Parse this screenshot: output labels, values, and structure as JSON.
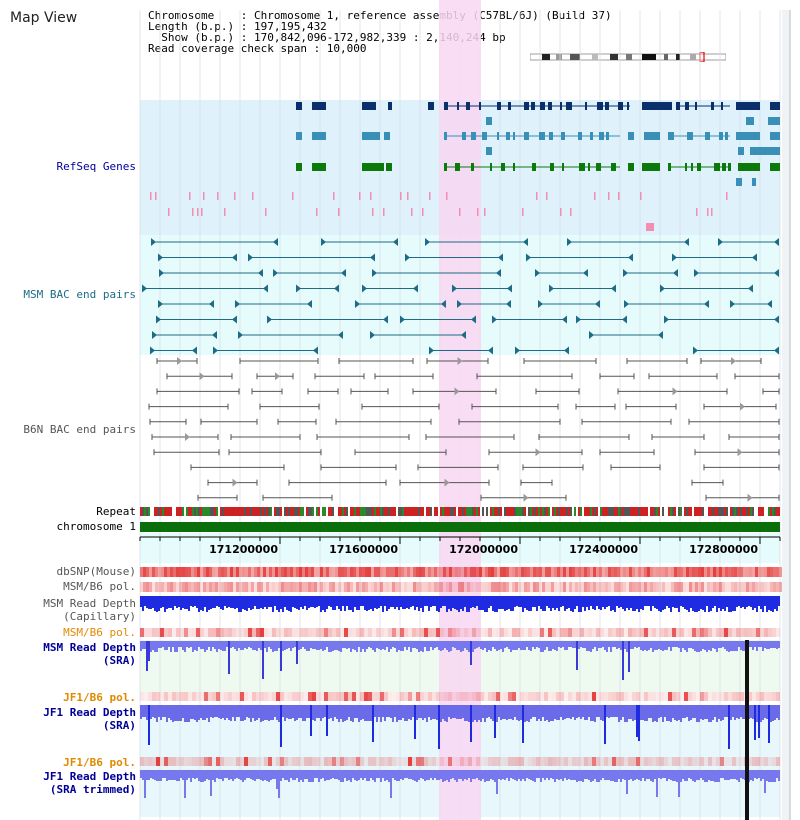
{
  "title": "Map View",
  "info": {
    "chromosome_line": "Chromosome    : Chromosome 1, reference assembly (C57BL/6J) (Build 37)",
    "length_line": "Length (b.p.) : 197,195,432",
    "show_line": "  Show (b.p.) : 170,842,096-172,982,339 : 2,140,244 bp",
    "coverage_line": "Read coverage check span : 10,000"
  },
  "tracks": {
    "refseq": "RefSeq Genes",
    "msm_bac": "MSM BAC end pairs",
    "b6n_bac": "B6N BAC end pairs",
    "repeat": "Repeat",
    "chromosome": "chromosome 1",
    "dbsnp": "dbSNP(Mouse)",
    "msm_b6_pol": "MSM/B6 pol.",
    "msm_depth_cap_1": "MSM Read Depth",
    "msm_depth_cap_2": "(Capillary)",
    "msm_b6_pol_2": "MSM/B6 pol.",
    "msm_depth_sra_1": "MSM Read Depth",
    "msm_depth_sra_2": "(SRA)",
    "jf1_b6_pol": "JF1/B6 pol.",
    "jf1_depth_sra_1": "JF1 Read Depth",
    "jf1_depth_sra_2": "(SRA)",
    "jf1_b6_pol_2": "JF1/B6 pol.",
    "jf1_depth_trim_1": "JF1 Read Depth",
    "jf1_depth_trim_2": "(SRA trimmed)"
  },
  "axis": {
    "ticks": [
      "171200000",
      "171600000",
      "172000000",
      "172400000",
      "172800000"
    ]
  },
  "colors": {
    "refseq_bg": "#dff1fb",
    "msm_bg": "#e6fbfc",
    "highlight": "#f8d7f2",
    "gene_dark": "#0a2f6b",
    "gene_blue": "#3a8fb7",
    "gene_green": "#0b7a0b",
    "bac_msm": "#1d6b86",
    "bac_b6n": "#555555",
    "chromosome_bar": "#0a6e0a",
    "depth_blue": "#1f2be0",
    "depth_light": "#7777ee",
    "pol_red": "#e33b3b",
    "orange_label": "#e08a00",
    "navy_label": "#000099"
  }
}
